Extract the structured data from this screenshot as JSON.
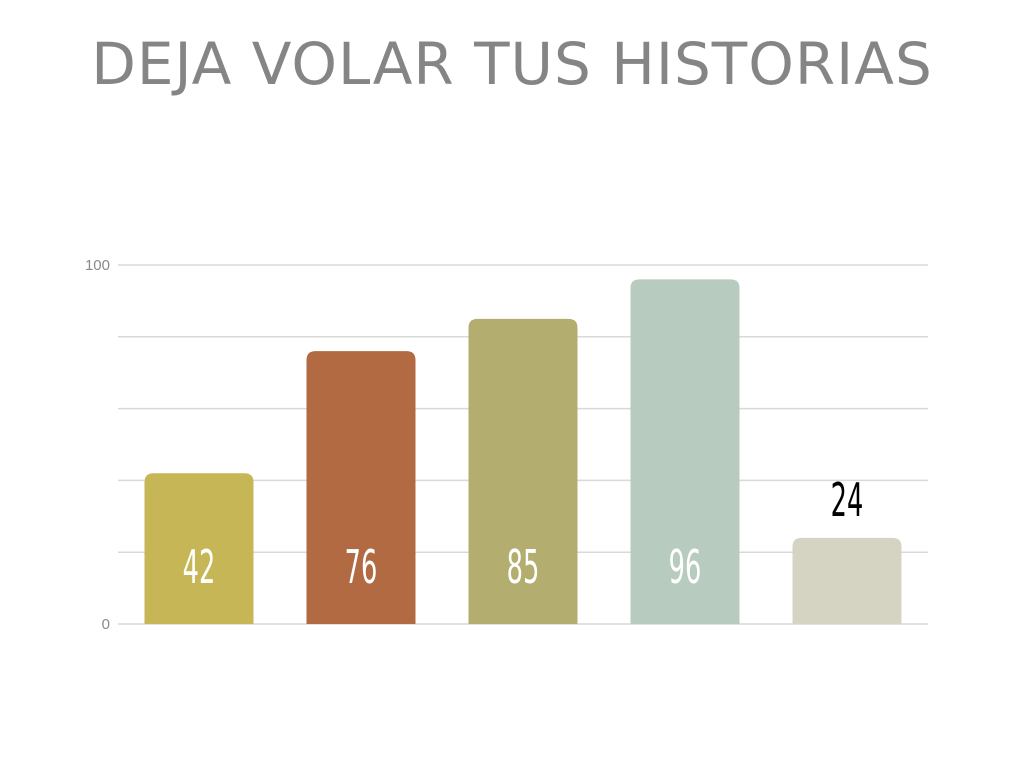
{
  "page": {
    "title": "DEJA VOLAR TUS HISTORIAS"
  },
  "chart_data": {
    "type": "bar",
    "title": "DEJA VOLAR TUS HISTORIAS",
    "xlabel": "",
    "ylabel": "",
    "ylim": [
      0,
      100
    ],
    "grid": true,
    "legend": "none",
    "yticks": [
      {
        "value": 0,
        "label": "0"
      },
      {
        "value": 100,
        "label": "100"
      }
    ],
    "gridlines": [
      0,
      20,
      40,
      60,
      80,
      100
    ],
    "values": [
      42,
      76,
      85,
      96,
      24
    ],
    "value_labels": [
      "42",
      "76",
      "85",
      "96",
      "24"
    ],
    "colors": [
      "#c6b656",
      "#b26a43",
      "#b3ae70",
      "#b8cbbf",
      "#d5d4c2"
    ],
    "label_colors": [
      "#ffffff",
      "#ffffff",
      "#ffffff",
      "#ffffff",
      "#000000"
    ],
    "label_positions": [
      "inside",
      "inside",
      "inside",
      "inside",
      "above"
    ]
  }
}
